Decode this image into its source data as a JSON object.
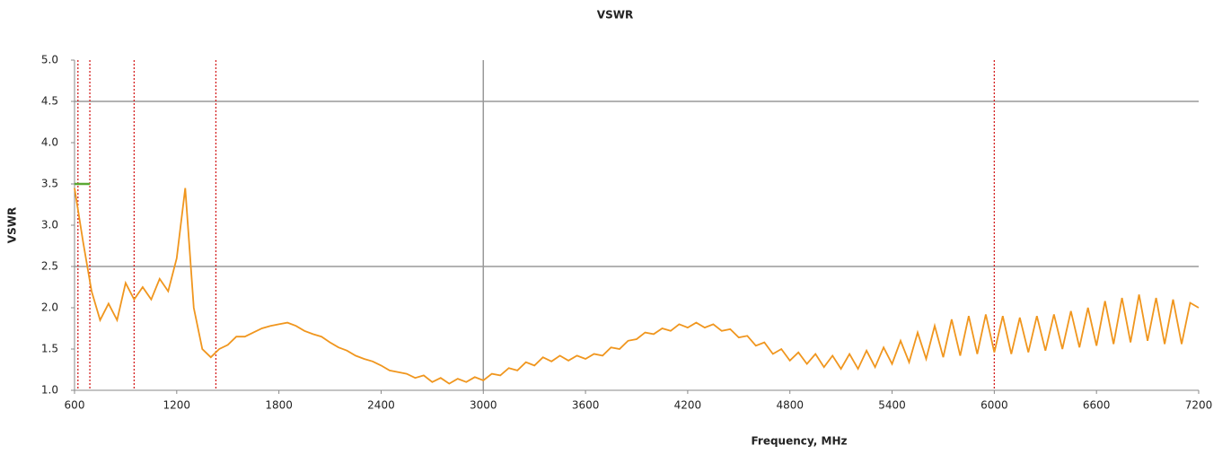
{
  "chart_data": {
    "type": "line",
    "title": "VSWR",
    "x_label": "Frequency, MHz",
    "y_label": "VSWR",
    "x": [
      600,
      650,
      700,
      750,
      800,
      850,
      900,
      950,
      1000,
      1050,
      1100,
      1150,
      1200,
      1250,
      1300,
      1350,
      1400,
      1450,
      1500,
      1550,
      1600,
      1650,
      1700,
      1750,
      1800,
      1850,
      1900,
      1950,
      2000,
      2050,
      2100,
      2150,
      2200,
      2250,
      2300,
      2350,
      2400,
      2450,
      2500,
      2550,
      2600,
      2650,
      2700,
      2750,
      2800,
      2850,
      2900,
      2950,
      3000,
      3050,
      3100,
      3150,
      3200,
      3250,
      3300,
      3350,
      3400,
      3450,
      3500,
      3550,
      3600,
      3650,
      3700,
      3750,
      3800,
      3850,
      3900,
      3950,
      4000,
      4050,
      4100,
      4150,
      4200,
      4250,
      4300,
      4350,
      4400,
      4450,
      4500,
      4550,
      4600,
      4650,
      4700,
      4750,
      4800,
      4850,
      4900,
      4950,
      5000,
      5050,
      5100,
      5150,
      5200,
      5250,
      5300,
      5350,
      5400,
      5450,
      5500,
      5550,
      5600,
      5650,
      5700,
      5750,
      5800,
      5850,
      5900,
      5950,
      6000,
      6050,
      6100,
      6150,
      6200,
      6250,
      6300,
      6350,
      6400,
      6450,
      6500,
      6550,
      6600,
      6650,
      6700,
      6750,
      6800,
      6850,
      6900,
      6950,
      7000,
      7050,
      7100,
      7150,
      7200
    ],
    "series": [
      {
        "name": "VSWR",
        "color": "#f0961e",
        "values": [
          3.45,
          2.8,
          2.2,
          1.85,
          2.05,
          1.85,
          2.3,
          2.1,
          2.25,
          2.1,
          2.35,
          2.2,
          2.6,
          3.45,
          2.0,
          1.5,
          1.4,
          1.5,
          1.55,
          1.65,
          1.65,
          1.7,
          1.75,
          1.78,
          1.8,
          1.82,
          1.78,
          1.72,
          1.68,
          1.65,
          1.58,
          1.52,
          1.48,
          1.42,
          1.38,
          1.35,
          1.3,
          1.24,
          1.22,
          1.2,
          1.15,
          1.18,
          1.1,
          1.15,
          1.08,
          1.14,
          1.1,
          1.16,
          1.12,
          1.2,
          1.18,
          1.27,
          1.24,
          1.34,
          1.3,
          1.4,
          1.35,
          1.42,
          1.36,
          1.42,
          1.38,
          1.44,
          1.42,
          1.52,
          1.5,
          1.6,
          1.62,
          1.7,
          1.68,
          1.75,
          1.72,
          1.8,
          1.76,
          1.82,
          1.76,
          1.8,
          1.72,
          1.74,
          1.64,
          1.66,
          1.54,
          1.58,
          1.44,
          1.5,
          1.36,
          1.46,
          1.32,
          1.44,
          1.28,
          1.42,
          1.26,
          1.44,
          1.26,
          1.48,
          1.28,
          1.52,
          1.32,
          1.6,
          1.34,
          1.7,
          1.38,
          1.78,
          1.4,
          1.86,
          1.42,
          1.9,
          1.44,
          1.92,
          1.46,
          1.9,
          1.44,
          1.88,
          1.46,
          1.9,
          1.48,
          1.92,
          1.5,
          1.96,
          1.52,
          2.0,
          1.54,
          2.08,
          1.56,
          2.12,
          1.58,
          2.16,
          1.6,
          2.12,
          1.56,
          2.1,
          1.56,
          2.06,
          2.0
        ]
      }
    ],
    "xlim": [
      600,
      7200
    ],
    "xticks": [
      600,
      1200,
      1800,
      2400,
      3000,
      3600,
      4200,
      4800,
      5400,
      6000,
      6600,
      7200
    ],
    "ylim": [
      1,
      5
    ],
    "yticks": [
      {
        "value": 1,
        "label": "1.0"
      },
      1.5,
      {
        "value": 2,
        "label": "2.0"
      },
      2.5,
      {
        "value": 3,
        "label": "3.0"
      },
      3.5,
      {
        "value": 4,
        "label": "4.0"
      },
      4.5,
      {
        "value": 5,
        "label": "5.0"
      }
    ],
    "gray_hlines": [
      2.5,
      4.5
    ],
    "gray_vlines": [
      3000
    ],
    "red_vlines": [
      620,
      690,
      950,
      1430,
      6000
    ],
    "green_segment": {
      "x": [
        600,
        690
      ],
      "y": 3.5
    }
  }
}
